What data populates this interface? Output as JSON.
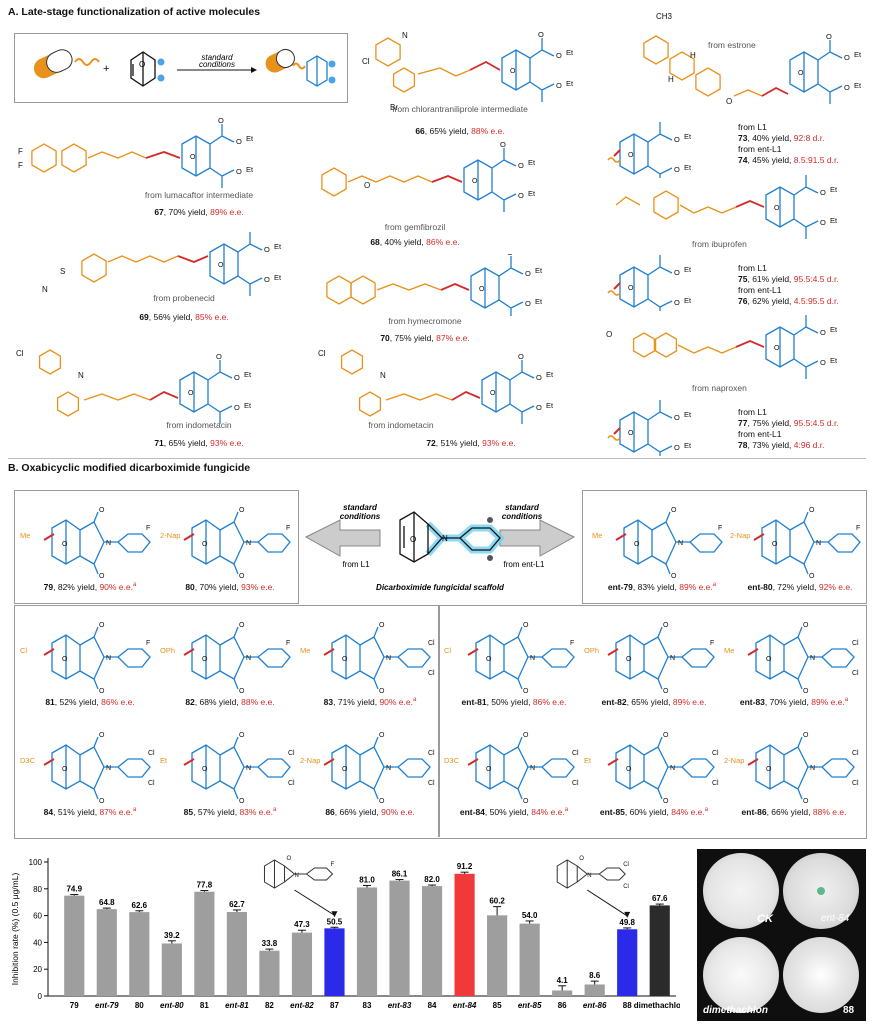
{
  "sectionA": {
    "title": "A. Late-stage functionalization of active molecules",
    "scheme": {
      "arrow_line1": "standard",
      "arrow_line2": "conditions"
    },
    "compounds": [
      {
        "source": "from chlorantraniliprole intermediate",
        "id": "66",
        "yield": "65% yield,",
        "ee": "88% e.e."
      },
      {
        "source": "from lumacaftor intermediate",
        "id": "67",
        "yield": "70% yield,",
        "ee": "89% e.e."
      },
      {
        "source": "from gemfibrozil",
        "id": "68",
        "yield": "40% yield,",
        "ee": "86% e.e."
      },
      {
        "source": "from probenecid",
        "id": "69",
        "yield": "56% yield,",
        "ee": "85% e.e."
      },
      {
        "source": "from hymecromone",
        "id": "70",
        "yield": "75% yield,",
        "ee": "87% e.e."
      },
      {
        "source": "from indometacin",
        "id": "71",
        "yield": "65% yield,",
        "ee": "93% e.e."
      },
      {
        "source": "from indometacin",
        "id": "72",
        "yield": "51% yield,",
        "ee": "93% e.e."
      }
    ],
    "estrone": {
      "source": "from estrone",
      "methyl": "CH3",
      "lines": [
        {
          "text": "from L1"
        },
        {
          "id": "73",
          "yield": ", 40% yield, ",
          "dr": "92:8 d.r."
        },
        {
          "text": "from ent-L1"
        },
        {
          "id": "74",
          "yield": ", 45% yield, ",
          "dr": "8.5:91.5 d.r."
        }
      ]
    },
    "ibuprofen": {
      "source": "from ibuprofen",
      "lines": [
        {
          "text": "from L1"
        },
        {
          "id": "75",
          "yield": ", 61% yield, ",
          "dr": "95.5:4.5 d.r."
        },
        {
          "text": "from ent-L1"
        },
        {
          "id": "76",
          "yield": ", 62% yield, ",
          "dr": "4.5:95.5 d.r."
        }
      ]
    },
    "naproxen": {
      "source": "from naproxen",
      "lines": [
        {
          "text": "from L1"
        },
        {
          "id": "77",
          "yield": ", 75% yield, ",
          "dr": "95.5:4.5 d.r."
        },
        {
          "text": "from ent-L1"
        },
        {
          "id": "78",
          "yield": ", 73% yield, ",
          "dr": "4:96 d.r."
        }
      ]
    },
    "labels": {
      "et": "Et",
      "cl": "Cl",
      "br": "Br",
      "f": "F",
      "o": "O",
      "n": "N",
      "h": "H",
      "s": "S"
    }
  },
  "sectionB": {
    "title": "B. Oxabicyclic modified dicarboximide fungicide",
    "center": {
      "left1": "standard",
      "left2": "conditions",
      "leftfrom": "from L1",
      "right1": "standard",
      "right2": "conditions",
      "rightfrom": "from ent-L1",
      "caption": "Dicarboximide fungicidal scaffold"
    },
    "compounds": [
      {
        "id": "79",
        "yield": ", 82% yield, ",
        "ee": "90% e.e.",
        "sup": "a",
        "sub": "Me"
      },
      {
        "id": "80",
        "yield": ", 70% yield, ",
        "ee": "93% e.e.",
        "sup": "",
        "sub": "2-Nap"
      },
      {
        "id": "ent-79",
        "yield": ", 83% yield, ",
        "ee": "89% e.e.",
        "sup": "a",
        "sub": "Me"
      },
      {
        "id": "ent-80",
        "yield": ", 72% yield, ",
        "ee": "92% e.e.",
        "sup": "",
        "sub": "2-Nap"
      },
      {
        "id": "81",
        "yield": ", 52% yield, ",
        "ee": "86% e.e.",
        "sup": "",
        "sub": "Cl"
      },
      {
        "id": "82",
        "yield": ", 68% yield, ",
        "ee": "88% e.e.",
        "sup": "",
        "sub": "OPh"
      },
      {
        "id": "83",
        "yield": ", 71% yield, ",
        "ee": "90% e.e.",
        "sup": "a",
        "sub": "Me"
      },
      {
        "id": "ent-81",
        "yield": ", 50% yield, ",
        "ee": "86% e.e.",
        "sup": "",
        "sub": "Cl"
      },
      {
        "id": "ent-82",
        "yield": ", 65% yield, ",
        "ee": "89% e.e.",
        "sup": "",
        "sub": "OPh"
      },
      {
        "id": "ent-83",
        "yield": ", 70% yield, ",
        "ee": "89% e.e.",
        "sup": "a",
        "sub": "Me"
      },
      {
        "id": "84",
        "yield": ", 51% yield, ",
        "ee": "87% e.e.",
        "sup": "a",
        "sub": "D3C"
      },
      {
        "id": "85",
        "yield": ", 57% yield, ",
        "ee": "83% e.e.",
        "sup": "a",
        "sub": "Et"
      },
      {
        "id": "86",
        "yield": ", 66% yield, ",
        "ee": "90% e.e.",
        "sup": "",
        "sub": "2-Nap"
      },
      {
        "id": "ent-84",
        "yield": ", 50% yield, ",
        "ee": "84% e.e.",
        "sup": "a",
        "sub": "D3C"
      },
      {
        "id": "ent-85",
        "yield": ", 60% yield, ",
        "ee": "84% e.e.",
        "sup": "a",
        "sub": "Et"
      },
      {
        "id": "ent-86",
        "yield": ", 66% yield, ",
        "ee": "88% e.e.",
        "sup": "",
        "sub": "2-Nap"
      }
    ]
  },
  "chart_data": {
    "type": "bar",
    "ylabel": "Inhibition rate (%) (0.5 μg/mL)",
    "ylim": [
      0,
      100
    ],
    "yticks": [
      0,
      20,
      40,
      60,
      80,
      100
    ],
    "categories": [
      "79",
      "ent-79",
      "80",
      "ent-80",
      "81",
      "ent-81",
      "82",
      "ent-82",
      "87",
      "83",
      "ent-83",
      "84",
      "ent-84",
      "85",
      "ent-85",
      "86",
      "ent-86",
      "88",
      "dimethachlon"
    ],
    "values": [
      74.9,
      64.8,
      62.6,
      39.2,
      77.8,
      62.7,
      33.8,
      47.3,
      50.5,
      81.0,
      86.1,
      82.0,
      91.2,
      60.2,
      54.0,
      4.1,
      8.6,
      49.8,
      67.6
    ],
    "value_labels": [
      "74.9",
      "64.8",
      "62.6",
      "39.2",
      "77.8",
      "62.7",
      "33.8",
      "47.3",
      "50.5",
      "81.0",
      "86.1",
      "82.0",
      "91.2",
      "60.2",
      "54.0",
      "4.1",
      "8.6",
      "49.8",
      "67.6"
    ],
    "errors": [
      0.8,
      0.8,
      1.0,
      2.0,
      0.9,
      1.5,
      1.2,
      1.8,
      0.8,
      1.5,
      0.8,
      0.8,
      1.2,
      6.5,
      2.0,
      3.5,
      2.5,
      1.0,
      1.0
    ],
    "colors": [
      "#9e9e9e",
      "#9e9e9e",
      "#9e9e9e",
      "#9e9e9e",
      "#9e9e9e",
      "#9e9e9e",
      "#9e9e9e",
      "#9e9e9e",
      "#2a2ae8",
      "#9e9e9e",
      "#9e9e9e",
      "#9e9e9e",
      "#f03a3a",
      "#9e9e9e",
      "#9e9e9e",
      "#9e9e9e",
      "#9e9e9e",
      "#2a2ae8",
      "#2b2b2b"
    ],
    "inset_labels": {
      "f": "F",
      "cl": "Cl",
      "o": "O",
      "n": "N"
    }
  },
  "plates": {
    "ck": "CK",
    "ent84": "ent-84",
    "dimethachlon": "dimethachlon",
    "p88": "88"
  },
  "colors": {
    "orange": "#e8921c",
    "blue": "#1f7fd1",
    "red": "#d42a2a",
    "gray_bar": "#9e9e9e",
    "blue_bar": "#2a2ae8",
    "red_bar": "#f03a3a"
  }
}
